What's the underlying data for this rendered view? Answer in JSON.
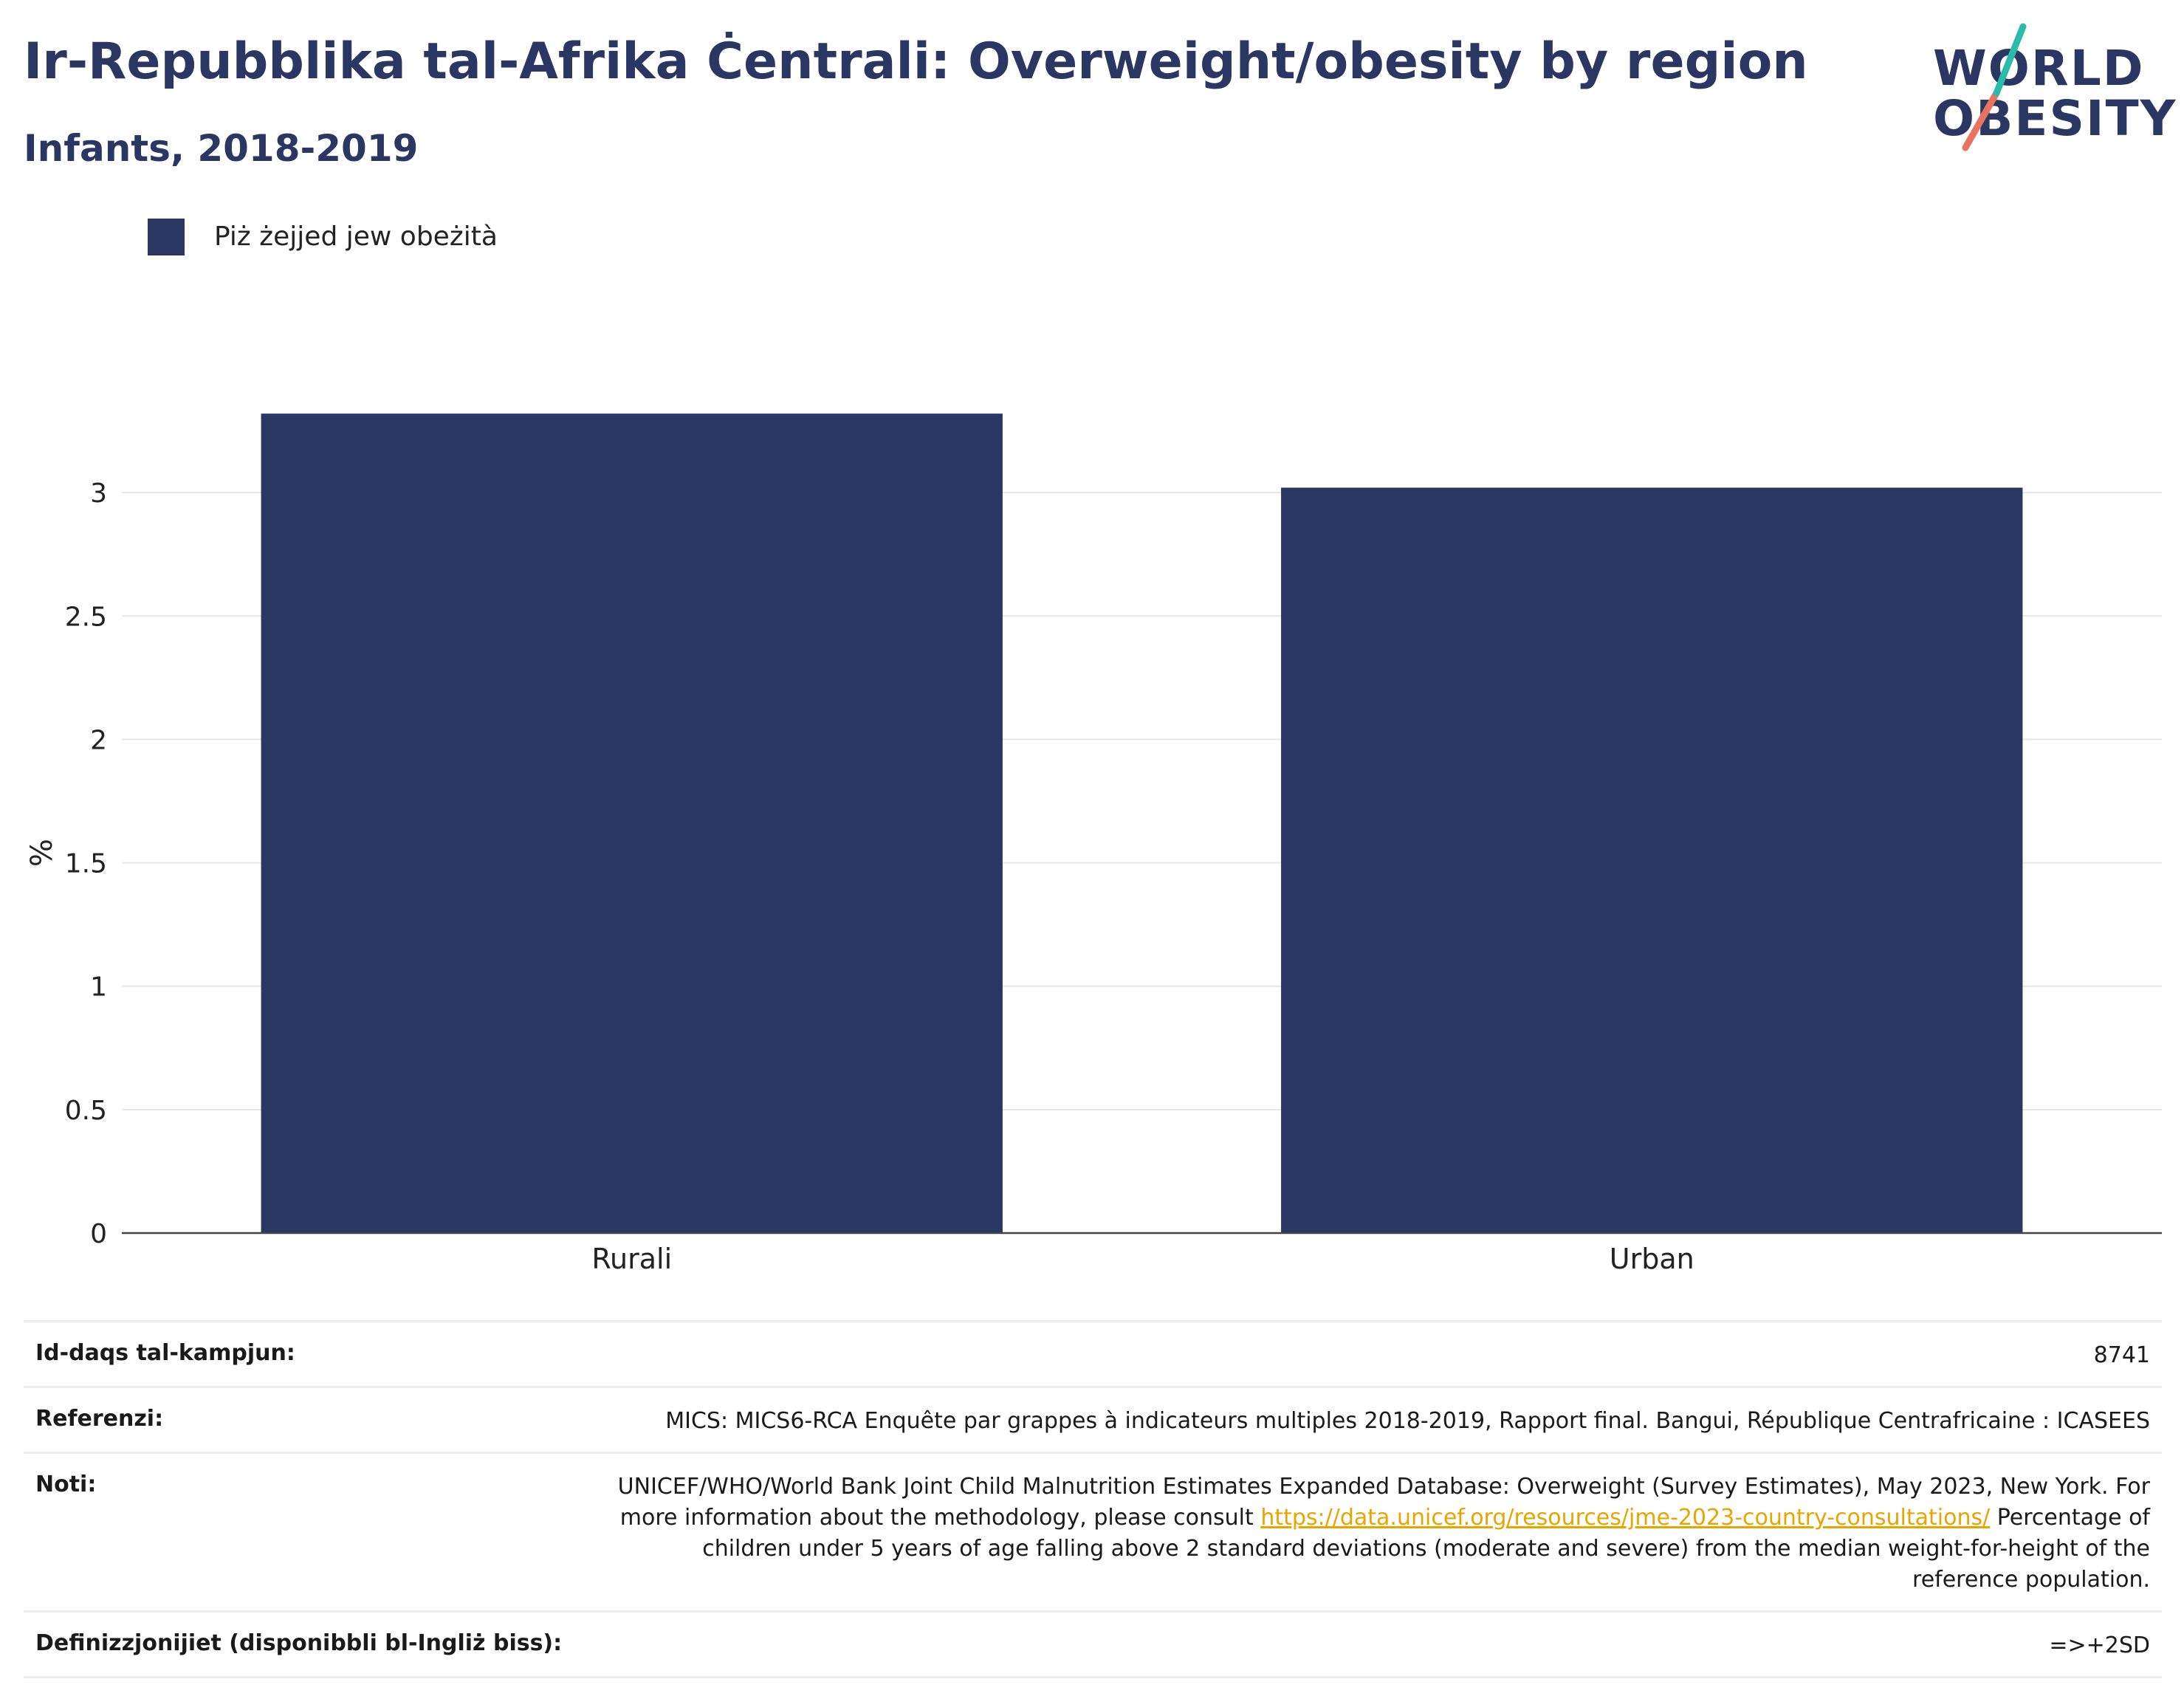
{
  "header": {
    "title": "Ir-Repubblika tal-Afrika Ċentrali: Overweight/obesity by region",
    "subtitle": "Infants, 2018-2019"
  },
  "logo": {
    "line1": "WORLD",
    "line2": "OBESITY",
    "colors": {
      "text": "#2b3763",
      "slash_top": "#2bbbad",
      "slash_bottom": "#e8735e"
    }
  },
  "legend": {
    "label": "Piż żejjed jew obeżità",
    "color": "#2b3763"
  },
  "chart_data": {
    "type": "bar",
    "categories": [
      "Rurali",
      "Urban"
    ],
    "series": [
      {
        "name": "Piż żejjed jew obeżità",
        "values": [
          3.32,
          3.02
        ],
        "color": "#2b3763"
      }
    ],
    "ylabel": "%",
    "xlabel": "",
    "ylim": [
      0,
      3.5
    ],
    "yticks": [
      0,
      0.5,
      1,
      1.5,
      2,
      2.5,
      3
    ],
    "ytick_labels": [
      "0",
      "0.5",
      "1",
      "1.5",
      "2",
      "2.5",
      "3"
    ],
    "grid": true,
    "legend_position": "top-left"
  },
  "info_table": {
    "sample_size": {
      "label": "Id-daqs tal-kampjun:",
      "value": "8741"
    },
    "references": {
      "label": "Referenzi:",
      "value": "MICS: MICS6-RCA Enquête par grappes à indicateurs multiples 2018-2019, Rapport final. Bangui, République Centrafricaine : ICASEES"
    },
    "notes": {
      "label": "Noti:",
      "text_before": "UNICEF/WHO/World Bank Joint Child Malnutrition Estimates Expanded Database: Overweight (Survey Estimates), May 2023, New York. For more information about the methodology, please consult ",
      "link": "https://data.unicef.org/resources/jme-2023-country-consultations/",
      "text_after": " Percentage of children under 5 years of age falling above 2 standard deviations (moderate and severe) from the median weight-for-height of the reference population."
    },
    "definitions": {
      "label": "Definizzjonijiet (disponibbli bl-Ingliż biss):",
      "value": "=>+2SD"
    }
  }
}
